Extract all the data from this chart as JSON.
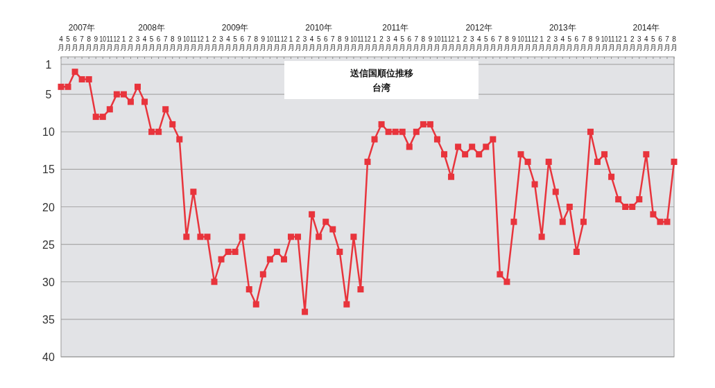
{
  "chart_data": {
    "type": "line",
    "title": "送信国順位推移",
    "subtitle": "台湾",
    "x": [
      "2007-04",
      "2007-05",
      "2007-06",
      "2007-07",
      "2007-08",
      "2007-09",
      "2007-10",
      "2007-11",
      "2007-12",
      "2008-01",
      "2008-02",
      "2008-03",
      "2008-04",
      "2008-05",
      "2008-06",
      "2008-07",
      "2008-08",
      "2008-09",
      "2008-10",
      "2008-11",
      "2008-12",
      "2009-01",
      "2009-02",
      "2009-03",
      "2009-04",
      "2009-05",
      "2009-06",
      "2009-07",
      "2009-08",
      "2009-09",
      "2009-10",
      "2009-11",
      "2009-12",
      "2010-01",
      "2010-02",
      "2010-03",
      "2010-04",
      "2010-05",
      "2010-06",
      "2010-07",
      "2010-08",
      "2010-09",
      "2010-10",
      "2010-11",
      "2010-12",
      "2011-01",
      "2011-02",
      "2011-03",
      "2011-04",
      "2011-05",
      "2011-06",
      "2011-07",
      "2011-08",
      "2011-09",
      "2011-10",
      "2011-11",
      "2011-12",
      "2012-01",
      "2012-02",
      "2012-03",
      "2012-04",
      "2012-05",
      "2012-06",
      "2012-07",
      "2012-08",
      "2012-09",
      "2012-10",
      "2012-11",
      "2012-12",
      "2013-01",
      "2013-02",
      "2013-03",
      "2013-04",
      "2013-05",
      "2013-06",
      "2013-07",
      "2013-08",
      "2013-09",
      "2013-10",
      "2013-11",
      "2013-12",
      "2014-01",
      "2014-02",
      "2014-03",
      "2014-04",
      "2014-05",
      "2014-06",
      "2014-07",
      "2014-08"
    ],
    "series": [
      {
        "color": "#e8343c",
        "values": [
          4,
          4,
          2,
          3,
          3,
          8,
          8,
          7,
          5,
          5,
          6,
          4,
          6,
          10,
          10,
          7,
          9,
          11,
          24,
          18,
          24,
          24,
          30,
          27,
          26,
          26,
          24,
          31,
          33,
          29,
          27,
          26,
          27,
          24,
          24,
          34,
          21,
          24,
          22,
          23,
          26,
          33,
          24,
          31,
          14,
          11,
          9,
          10,
          10,
          10,
          12,
          10,
          9,
          9,
          11,
          13,
          16,
          12,
          13,
          12,
          13,
          12,
          11,
          29,
          30,
          22,
          13,
          14,
          17,
          24,
          14,
          18,
          22,
          20,
          26,
          22,
          10,
          14,
          13,
          16,
          19,
          20,
          20,
          19,
          13,
          21,
          22,
          22,
          14
        ]
      }
    ],
    "xlim": [
      "2007-04",
      "2014-08"
    ],
    "xticks": [
      {
        "value": "2007-04",
        "label": "4月"
      },
      {
        "value": "2007-05",
        "label": "5月"
      },
      {
        "value": "2007-06",
        "label": "6月"
      },
      {
        "value": "2007-07",
        "label": "7月"
      },
      {
        "value": "2007-08",
        "label": "8月"
      },
      {
        "value": "2007-09",
        "label": "9月"
      },
      {
        "value": "2007-10",
        "label": "10月"
      },
      {
        "value": "2007-11",
        "label": "11月"
      },
      {
        "value": "2007-12",
        "label": "12月"
      },
      {
        "value": "2008-01",
        "label": "1月"
      },
      {
        "value": "2008-02",
        "label": "2月"
      },
      {
        "value": "2008-03",
        "label": "3月"
      },
      {
        "value": "2008-04",
        "label": "4月"
      },
      {
        "value": "2008-05",
        "label": "5月"
      },
      {
        "value": "2008-06",
        "label": "6月"
      },
      {
        "value": "2008-07",
        "label": "7月"
      },
      {
        "value": "2008-08",
        "label": "8月"
      },
      {
        "value": "2008-09",
        "label": "9月"
      },
      {
        "value": "2008-10",
        "label": "10月"
      },
      {
        "value": "2008-11",
        "label": "11月"
      },
      {
        "value": "2008-12",
        "label": "12月"
      },
      {
        "value": "2009-01",
        "label": "1月"
      },
      {
        "value": "2009-02",
        "label": "2月"
      },
      {
        "value": "2009-03",
        "label": "3月"
      },
      {
        "value": "2009-04",
        "label": "4月"
      },
      {
        "value": "2009-05",
        "label": "5月"
      },
      {
        "value": "2009-06",
        "label": "6月"
      },
      {
        "value": "2009-07",
        "label": "7月"
      },
      {
        "value": "2009-08",
        "label": "8月"
      },
      {
        "value": "2009-09",
        "label": "9月"
      },
      {
        "value": "2009-10",
        "label": "10月"
      },
      {
        "value": "2009-11",
        "label": "11月"
      },
      {
        "value": "2009-12",
        "label": "12月"
      },
      {
        "value": "2010-01",
        "label": "1月"
      },
      {
        "value": "2010-02",
        "label": "2月"
      },
      {
        "value": "2010-03",
        "label": "3月"
      },
      {
        "value": "2010-04",
        "label": "4月"
      },
      {
        "value": "2010-05",
        "label": "5月"
      },
      {
        "value": "2010-06",
        "label": "6月"
      },
      {
        "value": "2010-07",
        "label": "7月"
      },
      {
        "value": "2010-08",
        "label": "8月"
      },
      {
        "value": "2010-09",
        "label": "9月"
      },
      {
        "value": "2010-10",
        "label": "10月"
      },
      {
        "value": "2010-11",
        "label": "11月"
      },
      {
        "value": "2010-12",
        "label": "12月"
      },
      {
        "value": "2011-01",
        "label": "1月"
      },
      {
        "value": "2011-02",
        "label": "2月"
      },
      {
        "value": "2011-03",
        "label": "3月"
      },
      {
        "value": "2011-04",
        "label": "4月"
      },
      {
        "value": "2011-05",
        "label": "5月"
      },
      {
        "value": "2011-06",
        "label": "6月"
      },
      {
        "value": "2011-07",
        "label": "7月"
      },
      {
        "value": "2011-08",
        "label": "8月"
      },
      {
        "value": "2011-09",
        "label": "9月"
      },
      {
        "value": "2011-10",
        "label": "10月"
      },
      {
        "value": "2011-11",
        "label": "11月"
      },
      {
        "value": "2011-12",
        "label": "12月"
      },
      {
        "value": "2012-01",
        "label": "1月"
      },
      {
        "value": "2012-02",
        "label": "2月"
      },
      {
        "value": "2012-03",
        "label": "3月"
      },
      {
        "value": "2012-04",
        "label": "4月"
      },
      {
        "value": "2012-05",
        "label": "5月"
      },
      {
        "value": "2012-06",
        "label": "6月"
      },
      {
        "value": "2012-07",
        "label": "7月"
      },
      {
        "value": "2012-08",
        "label": "8月"
      },
      {
        "value": "2012-09",
        "label": "9月"
      },
      {
        "value": "2012-10",
        "label": "10月"
      },
      {
        "value": "2012-11",
        "label": "11月"
      },
      {
        "value": "2012-12",
        "label": "12月"
      },
      {
        "value": "2013-01",
        "label": "1月"
      },
      {
        "value": "2013-02",
        "label": "2月"
      },
      {
        "value": "2013-03",
        "label": "3月"
      },
      {
        "value": "2013-04",
        "label": "4月"
      },
      {
        "value": "2013-05",
        "label": "5月"
      },
      {
        "value": "2013-06",
        "label": "6月"
      },
      {
        "value": "2013-07",
        "label": "7月"
      },
      {
        "value": "2013-08",
        "label": "8月"
      },
      {
        "value": "2013-09",
        "label": "9月"
      },
      {
        "value": "2013-10",
        "label": "10月"
      },
      {
        "value": "2013-11",
        "label": "11月"
      },
      {
        "value": "2013-12",
        "label": "12月"
      },
      {
        "value": "2014-01",
        "label": "1月"
      },
      {
        "value": "2014-02",
        "label": "2月"
      },
      {
        "value": "2014-03",
        "label": "3月"
      },
      {
        "value": "2014-04",
        "label": "4月"
      },
      {
        "value": "2014-05",
        "label": "5月"
      },
      {
        "value": "2014-06",
        "label": "6月"
      },
      {
        "value": "2014-07",
        "label": "7月"
      },
      {
        "value": "2014-08",
        "label": "8月"
      }
    ],
    "x2lim": [
      "2007-04",
      "2014-08"
    ],
    "x2ticks": [
      {
        "value": "2007-07",
        "label": "2007年"
      },
      {
        "value": "2008-05",
        "label": "2008年"
      },
      {
        "value": "2009-05",
        "label": "2009年"
      },
      {
        "value": "2010-05",
        "label": "2010年"
      },
      {
        "value": "2011-04",
        "label": "2011年"
      },
      {
        "value": "2012-04",
        "label": "2012年"
      },
      {
        "value": "2013-04",
        "label": "2013年"
      },
      {
        "value": "2014-04",
        "label": "2014年"
      }
    ],
    "ylim": [
      40,
      0
    ],
    "yticks": [
      1,
      5,
      10,
      15,
      20,
      25,
      30,
      35,
      40
    ],
    "grid": "y",
    "marker": "square",
    "line_style": "solid"
  }
}
